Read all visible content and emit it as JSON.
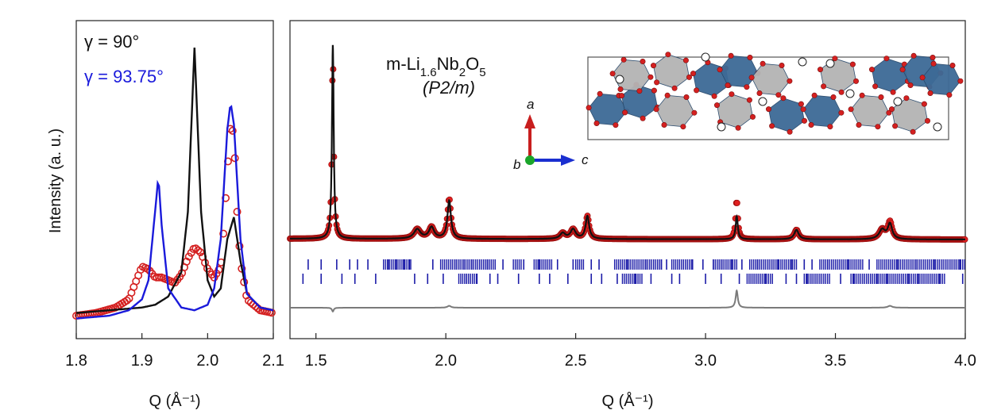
{
  "chart_data": [
    {
      "type": "line",
      "ylabel": "Intensity (a. u.)",
      "xlabel": "Q (Å⁻¹)",
      "xlim": [
        1.8,
        2.1
      ],
      "xticks": [
        "1.8",
        "1.9",
        "2.0",
        "2.1"
      ],
      "legend": [
        {
          "label": "γ = 90°",
          "color": "#111111"
        },
        {
          "label": "γ = 93.75°",
          "color": "#1a1adb"
        }
      ],
      "series": [
        {
          "name": "γ = 90°",
          "color": "#111111",
          "x": [
            1.8,
            1.85,
            1.9,
            1.92,
            1.94,
            1.96,
            1.97,
            1.98,
            1.99,
            2.0,
            2.01,
            2.02,
            2.03,
            2.04,
            2.05,
            2.06,
            2.08,
            2.1
          ],
          "y": [
            0.03,
            0.04,
            0.05,
            0.06,
            0.09,
            0.18,
            0.4,
            1.0,
            0.4,
            0.15,
            0.09,
            0.12,
            0.3,
            0.38,
            0.22,
            0.1,
            0.05,
            0.04
          ]
        },
        {
          "name": "γ = 93.75°",
          "color": "#1a1adb",
          "x": [
            1.8,
            1.85,
            1.88,
            1.9,
            1.91,
            1.92,
            1.925,
            1.93,
            1.94,
            1.96,
            1.98,
            2.0,
            2.01,
            2.02,
            2.03,
            2.035,
            2.04,
            2.05,
            2.06,
            2.08,
            2.1
          ],
          "y": [
            0.01,
            0.02,
            0.04,
            0.08,
            0.15,
            0.4,
            0.53,
            0.35,
            0.12,
            0.05,
            0.04,
            0.06,
            0.12,
            0.3,
            0.7,
            0.8,
            0.72,
            0.3,
            0.1,
            0.05,
            0.04
          ]
        }
      ],
      "observed": {
        "x": [
          1.8,
          1.83,
          1.86,
          1.88,
          1.89,
          1.9,
          1.91,
          1.92,
          1.93,
          1.94,
          1.95,
          1.96,
          1.97,
          1.98,
          1.99,
          2.0,
          2.01,
          2.02,
          2.025,
          2.03,
          2.035,
          2.04,
          2.045,
          2.05,
          2.06,
          2.08,
          2.1
        ],
        "y": [
          0.02,
          0.03,
          0.05,
          0.08,
          0.14,
          0.2,
          0.19,
          0.16,
          0.16,
          0.15,
          0.14,
          0.17,
          0.23,
          0.27,
          0.25,
          0.19,
          0.16,
          0.2,
          0.35,
          0.55,
          0.72,
          0.68,
          0.4,
          0.22,
          0.08,
          0.04,
          0.03
        ]
      }
    },
    {
      "type": "line",
      "xlabel": "Q (Å⁻¹)",
      "xlim": [
        1.4,
        4.0
      ],
      "xticks": [
        "1.5",
        "2.0",
        "2.5",
        "3.0",
        "3.5",
        "4.0"
      ],
      "compound": {
        "prefix": "m-Li",
        "sub1": "1.6",
        "mid": "Nb",
        "sub2": "2",
        "o": "O",
        "sub3": "5",
        "space_group": "(P2/m)"
      },
      "axes_labels": {
        "a": "a",
        "b": "b",
        "c": "c"
      },
      "peaks": [
        {
          "x": 1.565,
          "obs": 1.0,
          "calc": 1.02,
          "w": 0.004
        },
        {
          "x": 1.89,
          "obs": 0.05,
          "calc": 0.05,
          "w": 0.015
        },
        {
          "x": 1.945,
          "obs": 0.06,
          "calc": 0.06,
          "w": 0.012
        },
        {
          "x": 2.013,
          "obs": 0.21,
          "calc": 0.2,
          "w": 0.008
        },
        {
          "x": 2.45,
          "obs": 0.03,
          "calc": 0.03,
          "w": 0.012
        },
        {
          "x": 2.49,
          "obs": 0.05,
          "calc": 0.05,
          "w": 0.012
        },
        {
          "x": 2.545,
          "obs": 0.12,
          "calc": 0.12,
          "w": 0.008
        },
        {
          "x": 3.12,
          "obs": 0.21,
          "calc": 0.12,
          "w": 0.005
        },
        {
          "x": 3.35,
          "obs": 0.05,
          "calc": 0.05,
          "w": 0.01
        },
        {
          "x": 3.68,
          "obs": 0.05,
          "calc": 0.05,
          "w": 0.014
        },
        {
          "x": 3.71,
          "obs": 0.09,
          "calc": 0.08,
          "w": 0.01
        }
      ],
      "tick_rows": [
        {
          "color": "#1c1ca8",
          "x": [
            1.47,
            1.52,
            1.58,
            1.63,
            1.66,
            1.7,
            1.78,
            1.81,
            1.84,
            1.86,
            1.95,
            2.04,
            2.07,
            2.1,
            2.16,
            2.22,
            2.3,
            2.36,
            2.43,
            2.49,
            2.56,
            2.59,
            2.7,
            2.77,
            2.83,
            2.85,
            2.95,
            2.99,
            3.03,
            3.06,
            3.1,
            3.14,
            3.2,
            3.28,
            3.33,
            3.38,
            3.41,
            3.47,
            3.55,
            3.63,
            3.74,
            3.81,
            3.88,
            3.98
          ]
        },
        {
          "color": "#1c1ca8",
          "x": [
            1.45,
            1.52,
            1.6,
            1.65,
            1.73,
            1.88,
            1.93,
            1.99,
            2.08,
            2.12,
            2.17,
            2.2,
            2.28,
            2.36,
            2.4,
            2.47,
            2.56,
            2.6,
            2.66,
            2.73,
            2.79,
            2.87,
            2.9,
            3.0,
            3.06,
            3.13,
            3.23,
            3.31,
            3.35,
            3.39,
            3.52,
            3.57,
            3.66,
            3.7,
            3.78,
            3.82,
            3.9,
            3.99
          ]
        }
      ],
      "dense_bands": [
        [
          [
            1.76,
            1.87
          ],
          [
            1.98,
            2.19
          ],
          [
            2.26,
            2.29
          ],
          [
            2.34,
            2.41
          ],
          [
            2.5,
            2.53
          ],
          [
            2.65,
            2.83
          ],
          [
            2.87,
            2.95
          ],
          [
            3.03,
            3.12
          ],
          [
            3.17,
            3.35
          ],
          [
            3.44,
            3.61
          ],
          [
            3.66,
            4.0
          ]
        ],
        [
          [
            2.05,
            2.12
          ],
          [
            2.68,
            2.76
          ],
          [
            3.16,
            3.26
          ],
          [
            3.38,
            3.48
          ],
          [
            3.56,
            3.92
          ]
        ]
      ]
    }
  ]
}
